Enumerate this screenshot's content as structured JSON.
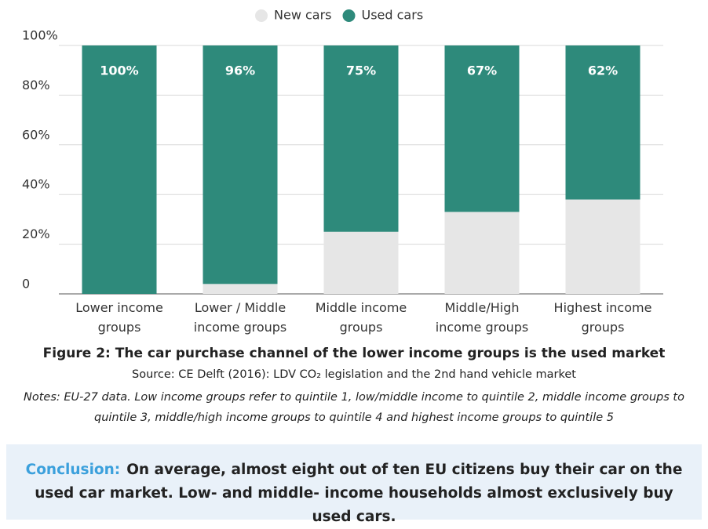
{
  "chart_data": {
    "type": "bar",
    "stacked": true,
    "categories": [
      "Lower income groups",
      "Lower / Middle income groups",
      "Middle income groups",
      "Middle/High income groups",
      "Highest income groups"
    ],
    "series": [
      {
        "name": "New cars",
        "color": "#e6e6e6",
        "values": [
          0,
          4,
          25,
          33,
          38
        ]
      },
      {
        "name": "Used cars",
        "color": "#2e8a7b",
        "values": [
          100,
          96,
          75,
          67,
          62
        ],
        "value_labels": [
          "100%",
          "96%",
          "75%",
          "67%",
          "62%"
        ]
      }
    ],
    "ylim": [
      0,
      100
    ],
    "yticks": [
      0,
      {
        "value": 20,
        "label": "20%"
      },
      {
        "value": 40,
        "label": "40%"
      },
      {
        "value": 60,
        "label": "60%"
      },
      {
        "value": 80,
        "label": "80%"
      },
      {
        "value": 100,
        "label": "100%"
      }
    ],
    "grid": true,
    "caption": "Figure 2: The car purchase channel of the lower income groups is the used market",
    "source": "Source: CE Delft (2016): LDV CO₂ legislation and the 2nd hand vehicle market",
    "notes": "Notes: EU-27 data. Low income groups refer to quintile 1, low/middle income to quintile 2, middle income groups to quintile 3, middle/high income groups to quintile 4 and highest income groups to quintile 5"
  },
  "conclusion": {
    "label": "Conclusion:",
    "text": "On average, almost eight out of ten EU citizens buy their car on the used car market. Low- and middle- income households almost exclusively buy used cars."
  }
}
